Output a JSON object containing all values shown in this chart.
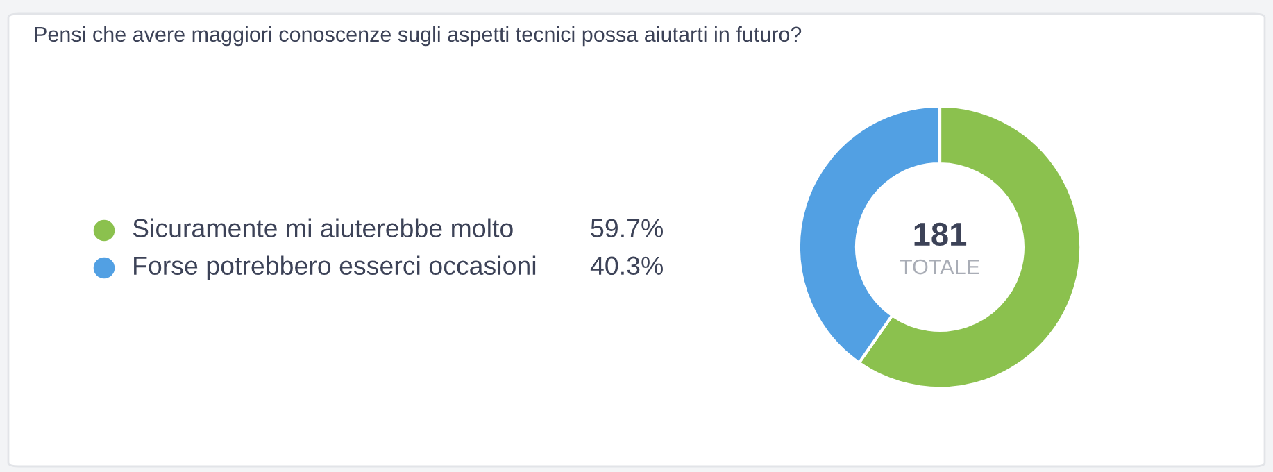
{
  "chart_data": {
    "type": "donut",
    "title": "Pensi che avere maggiori conoscenze sugli aspetti tecnici possa aiutarti in futuro?",
    "categories": [
      "Sicuramente mi aiuterebbe molto",
      "Forse potrebbero esserci occasioni"
    ],
    "values": [
      59.7,
      40.3
    ],
    "colors": [
      "#8bc14e",
      "#52a0e3"
    ],
    "value_labels": [
      "59.7%",
      "40.3%"
    ],
    "annotations": [
      "181",
      "TOTALE"
    ],
    "legend": "left"
  }
}
